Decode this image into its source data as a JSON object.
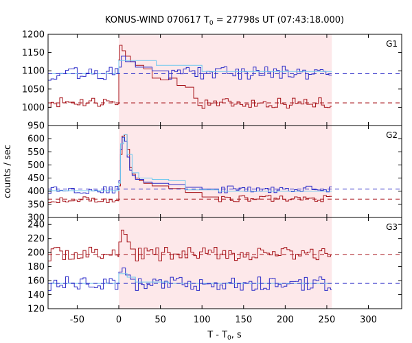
{
  "chart_data": {
    "type": "line",
    "title": {
      "main": "KONUS-WIND 070617 T",
      "sub": "0",
      "rest": " = 27798s UT (07:43:18.000)"
    },
    "xlabel": {
      "main": "T - T",
      "sub": "0",
      "rest": ", s"
    },
    "ylabel": "counts / sec",
    "xlim": [
      -85,
      340
    ],
    "xticks": [
      -50,
      0,
      50,
      100,
      150,
      200,
      250,
      300
    ],
    "highlight_interval": [
      0,
      256
    ],
    "colors": {
      "dark_red": "#a50f15",
      "blue": "#2a2ac8",
      "cyan": "#6fc8ee",
      "highlight": "#fde8ea"
    },
    "panels": [
      {
        "name": "G1",
        "ylim": [
          950,
          1200
        ],
        "yticks": [
          950,
          1000,
          1050,
          1100,
          1150,
          1200
        ],
        "series": [
          {
            "color": "dark_red",
            "bins": [
              [
                -85,
                1015
              ],
              [
                0,
                1130
              ],
              [
                1,
                1170
              ],
              [
                4,
                1155
              ],
              [
                8,
                1140
              ],
              [
                14,
                1125
              ],
              [
                20,
                1115
              ],
              [
                30,
                1105
              ],
              [
                40,
                1080
              ],
              [
                50,
                1075
              ],
              [
                60,
                1080
              ],
              [
                70,
                1060
              ],
              [
                80,
                1055
              ],
              [
                90,
                1025
              ],
              [
                95,
                1005
              ]
            ],
            "noise": {
              "start": 100,
              "end": 256,
              "step": 3.5,
              "base": 1012,
              "amp": 15
            }
          },
          {
            "color": "blue",
            "bins": [
              [
                -85,
                1092
              ],
              [
                0,
                1110
              ],
              [
                3,
                1140
              ],
              [
                8,
                1125
              ],
              [
                20,
                1110
              ],
              [
                40,
                1100
              ]
            ],
            "noise": {
              "start": 60,
              "end": 256,
              "step": 3.5,
              "base": 1095,
              "amp": 18
            }
          },
          {
            "color": "cyan",
            "bins": [
              [
                -85,
                1092
              ],
              [
                0,
                1128
              ],
              [
                45,
                1115
              ],
              [
                100,
                1098
              ]
            ],
            "end": 256
          }
        ],
        "baselines": [
          {
            "color": "blue",
            "y": 1092
          },
          {
            "color": "dark_red",
            "y": 1012
          }
        ]
      },
      {
        "name": "G2",
        "ylim": [
          300,
          650
        ],
        "yticks": [
          300,
          350,
          400,
          450,
          500,
          550,
          600
        ],
        "series": [
          {
            "color": "dark_red",
            "bins": [
              [
                -85,
                368
              ],
              [
                0,
                420
              ],
              [
                2,
                540
              ],
              [
                4,
                610
              ],
              [
                7,
                615
              ],
              [
                10,
                560
              ],
              [
                13,
                490
              ],
              [
                16,
                465
              ],
              [
                20,
                450
              ],
              [
                25,
                440
              ],
              [
                30,
                430
              ],
              [
                40,
                420
              ],
              [
                60,
                410
              ],
              [
                80,
                395
              ],
              [
                100,
                378
              ]
            ],
            "noise": {
              "start": 120,
              "end": 256,
              "step": 3.5,
              "base": 372,
              "amp": 12
            }
          },
          {
            "color": "blue",
            "bins": [
              [
                -85,
                405
              ],
              [
                0,
                440
              ],
              [
                2,
                560
              ],
              [
                4,
                605
              ],
              [
                7,
                590
              ],
              [
                10,
                530
              ],
              [
                13,
                480
              ],
              [
                16,
                460
              ],
              [
                20,
                445
              ],
              [
                30,
                435
              ],
              [
                40,
                430
              ],
              [
                60,
                425
              ],
              [
                80,
                415
              ],
              [
                100,
                408
              ]
            ],
            "noise": {
              "start": 120,
              "end": 256,
              "step": 3.5,
              "base": 408,
              "amp": 14
            }
          },
          {
            "color": "cyan",
            "bins": [
              [
                -85,
                402
              ],
              [
                0,
                430
              ],
              [
                2,
                580
              ],
              [
                6,
                615
              ],
              [
                10,
                540
              ],
              [
                16,
                470
              ],
              [
                24,
                450
              ],
              [
                40,
                445
              ],
              [
                60,
                440
              ],
              [
                80,
                405
              ],
              [
                120,
                400
              ]
            ],
            "end": 256
          }
        ],
        "baselines": [
          {
            "color": "blue",
            "y": 408
          },
          {
            "color": "dark_red",
            "y": 370
          }
        ]
      },
      {
        "name": "G3",
        "ylim": [
          120,
          250
        ],
        "yticks": [
          120,
          140,
          160,
          180,
          200,
          220,
          240
        ],
        "series": [
          {
            "color": "dark_red",
            "bins": [
              [
                -85,
                198
              ],
              [
                0,
                215
              ],
              [
                3,
                232
              ],
              [
                6,
                226
              ],
              [
                10,
                215
              ],
              [
                14,
                205
              ]
            ],
            "noise": {
              "start": 20,
              "end": 256,
              "step": 3.5,
              "base": 198,
              "amp": 10
            }
          },
          {
            "color": "blue",
            "bins": [
              [
                -85,
                156
              ],
              [
                0,
                172
              ],
              [
                4,
                178
              ],
              [
                8,
                168
              ],
              [
                14,
                162
              ]
            ],
            "noise": {
              "start": 20,
              "end": 256,
              "step": 3.5,
              "base": 156,
              "amp": 10
            }
          },
          {
            "color": "cyan",
            "bins": [
              [
                -85,
                156
              ],
              [
                0,
                170
              ],
              [
                10,
                165
              ],
              [
                20,
                158
              ],
              [
                60,
                156
              ]
            ],
            "end": 256
          }
        ],
        "baselines": [
          {
            "color": "blue",
            "y": 156
          },
          {
            "color": "dark_red",
            "y": 197
          }
        ]
      }
    ]
  }
}
